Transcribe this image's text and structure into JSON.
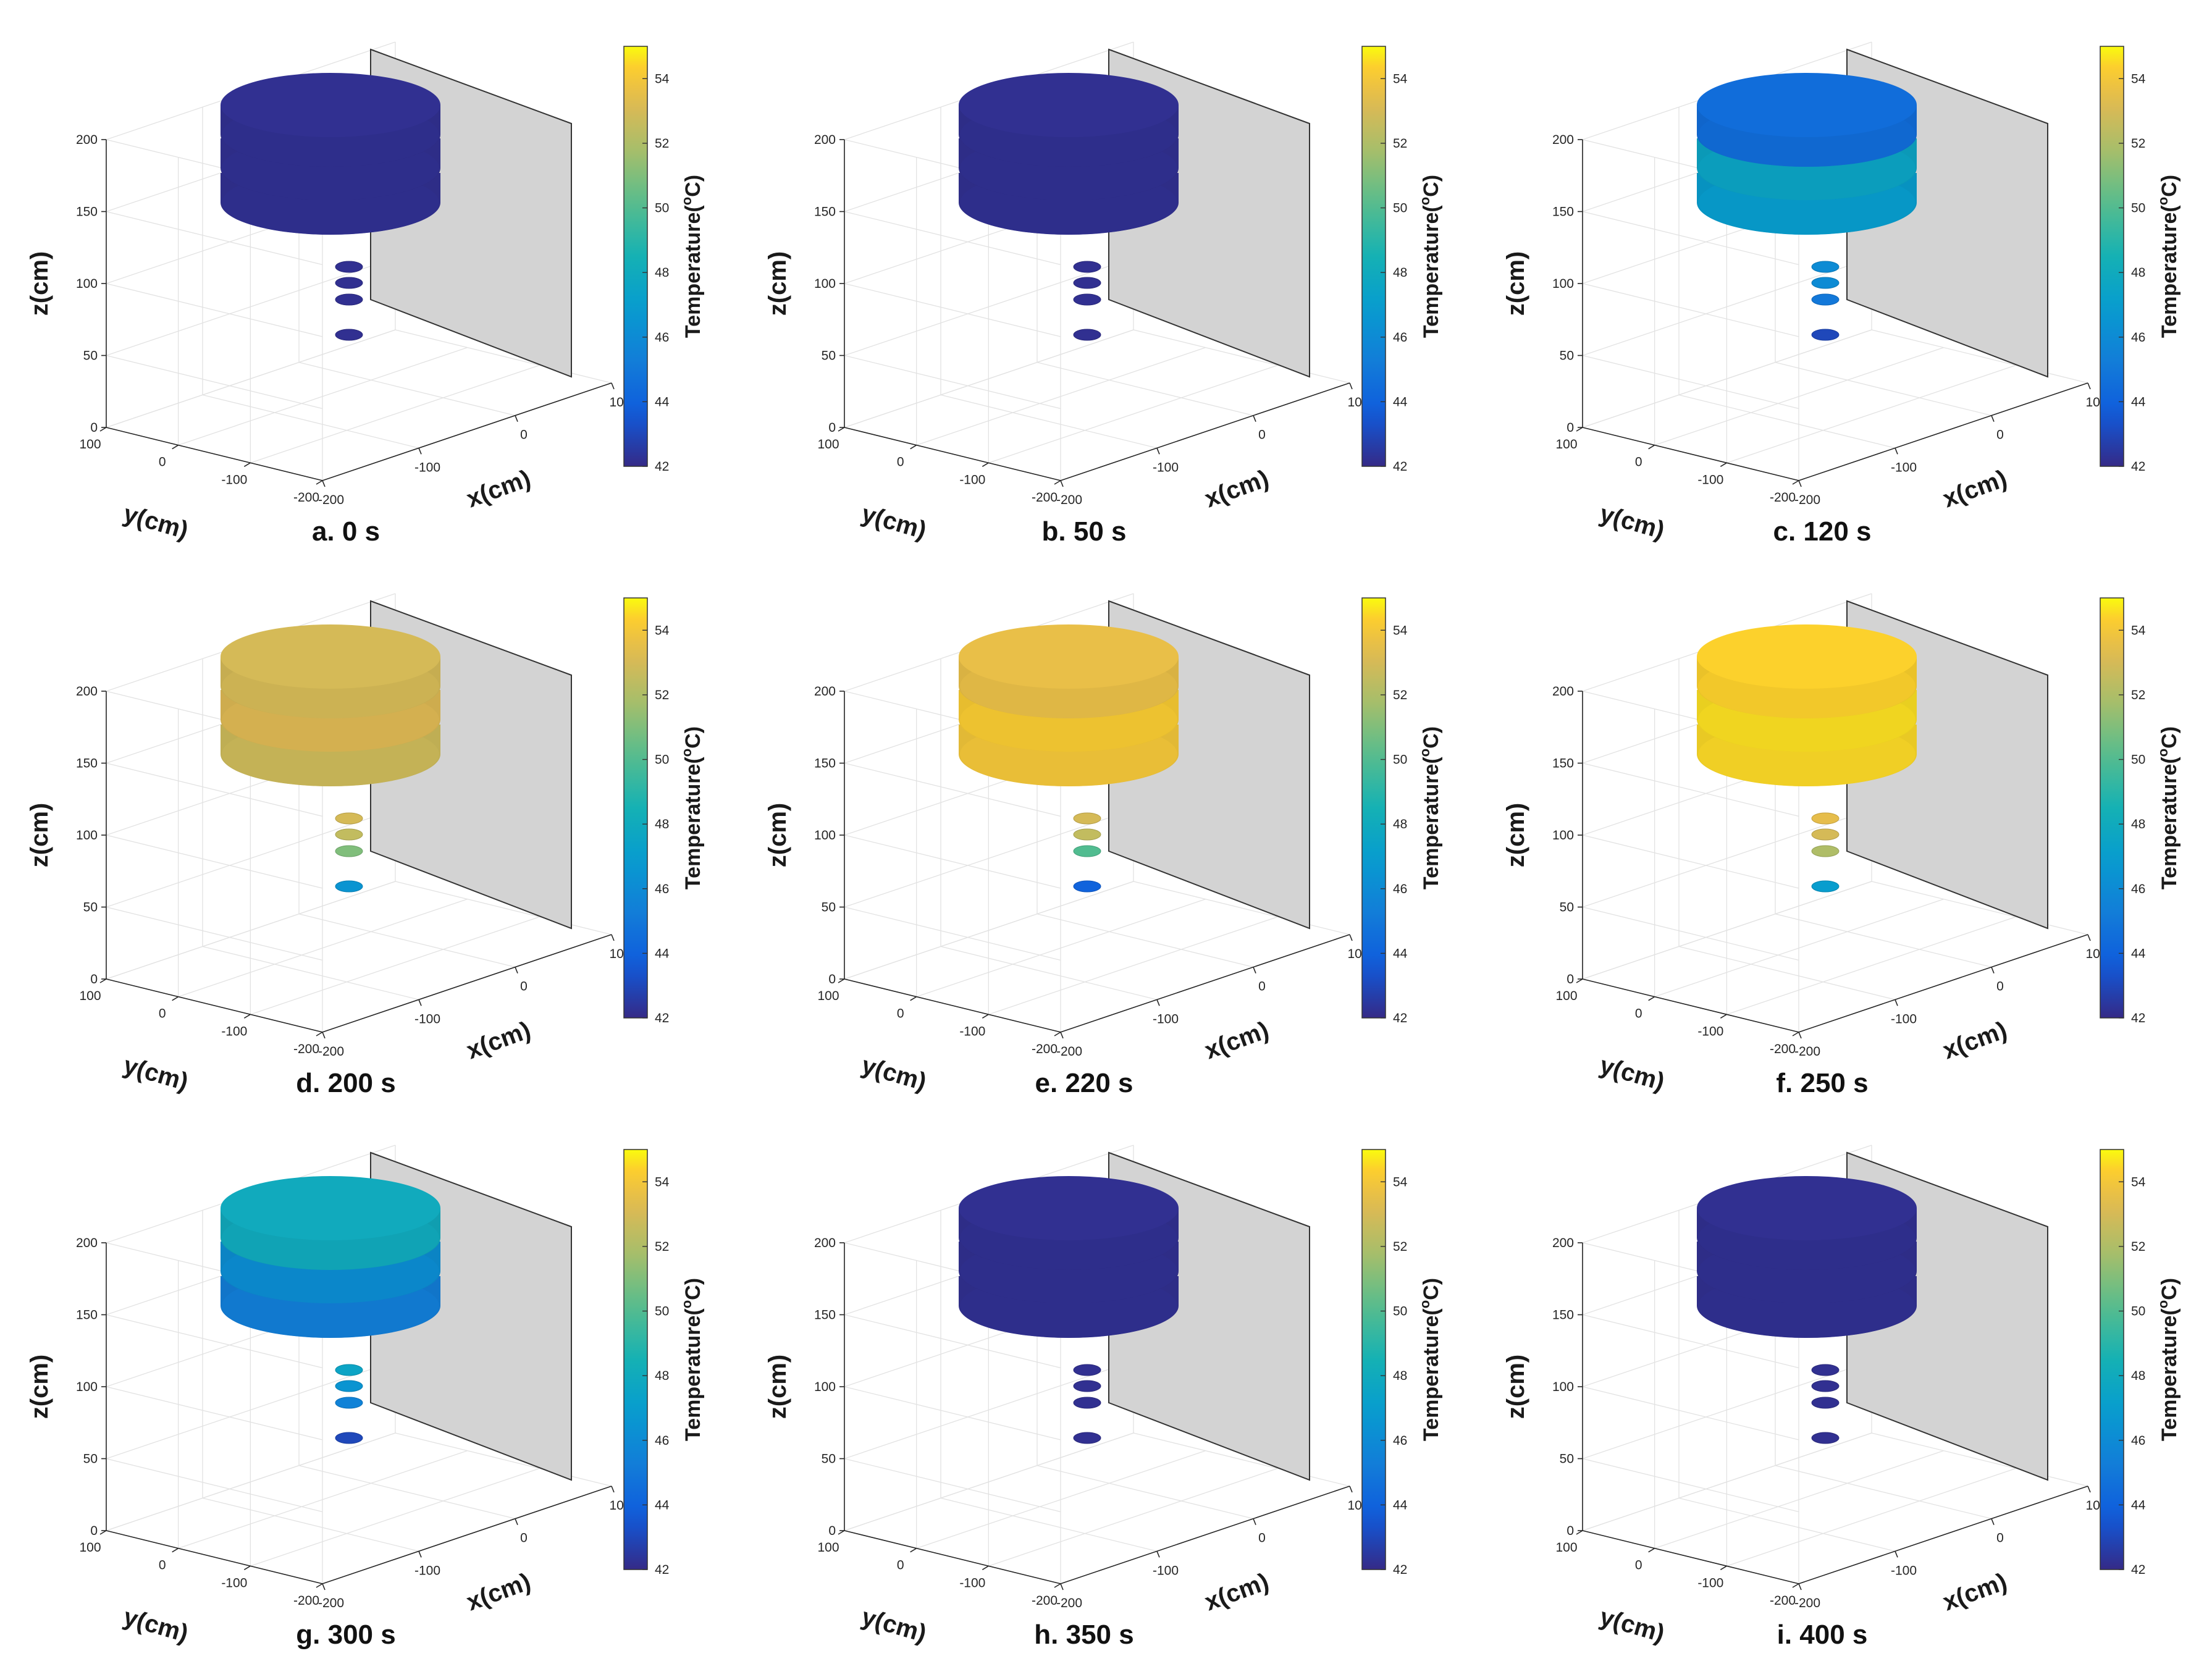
{
  "chart_data": {
    "type": "3d-surface-time-series",
    "colorbar": {
      "label": "Temperature(°C)",
      "label_main": "Temperature(",
      "label_sup": "o",
      "label_tail": "C)",
      "min": 42,
      "max": 55,
      "ticks": [
        "42",
        "44",
        "46",
        "48",
        "50",
        "52",
        "54"
      ],
      "colormap": "parula"
    },
    "axes": {
      "xlabel": "x(cm)",
      "ylabel": "y(cm)",
      "zlabel": "z(cm)",
      "x_ticks": [
        "-200",
        "-100",
        "0",
        "100"
      ],
      "y_ticks": [
        "-200",
        "-100",
        "0",
        "100"
      ],
      "z_ticks": [
        "0",
        "50",
        "100",
        "150",
        "200"
      ],
      "xlim": [
        -200,
        100
      ],
      "ylim": [
        -200,
        100
      ],
      "zlim": [
        0,
        200
      ]
    },
    "panels": [
      {
        "id": "a",
        "caption": "a. 0 s",
        "time_s": 0,
        "cushion_temps": [
          42.2,
          42.2,
          42.2
        ],
        "lower_temps": [
          42.2,
          42.2,
          42.2,
          42.2
        ]
      },
      {
        "id": "b",
        "caption": "b. 50 s",
        "time_s": 50,
        "cushion_temps": [
          42.2,
          42.2,
          42.2
        ],
        "lower_temps": [
          42.2,
          42.2,
          42.2,
          42.2
        ]
      },
      {
        "id": "c",
        "caption": "c. 120 s",
        "time_s": 120,
        "cushion_temps": [
          44.5,
          47.5,
          47.0
        ],
        "lower_temps": [
          46.0,
          46.0,
          45.0,
          43.0
        ]
      },
      {
        "id": "d",
        "caption": "d. 200 s",
        "time_s": 200,
        "cushion_temps": [
          53.0,
          53.2,
          52.8
        ],
        "lower_temps": [
          53.0,
          52.5,
          51.0,
          46.5
        ]
      },
      {
        "id": "e",
        "caption": "e. 220 s",
        "time_s": 220,
        "cushion_temps": [
          53.6,
          54.2,
          54.0
        ],
        "lower_temps": [
          53.0,
          52.5,
          50.0,
          44.0
        ]
      },
      {
        "id": "f",
        "caption": "f. 250 s",
        "time_s": 250,
        "cushion_temps": [
          54.4,
          54.6,
          54.5
        ],
        "lower_temps": [
          53.5,
          53.0,
          52.0,
          47.0
        ]
      },
      {
        "id": "g",
        "caption": "g. 300 s",
        "time_s": 300,
        "cushion_temps": [
          48.0,
          46.2,
          45.3
        ],
        "lower_temps": [
          47.5,
          46.5,
          45.5,
          43.0
        ]
      },
      {
        "id": "h",
        "caption": "h. 350 s",
        "time_s": 350,
        "cushion_temps": [
          42.2,
          42.2,
          42.2
        ],
        "lower_temps": [
          42.2,
          42.2,
          42.2,
          42.2
        ]
      },
      {
        "id": "i",
        "caption": "i. 400 s",
        "time_s": 400,
        "cushion_temps": [
          42.2,
          42.2,
          42.2
        ],
        "lower_temps": [
          42.2,
          42.2,
          42.2,
          42.2
        ]
      }
    ]
  }
}
